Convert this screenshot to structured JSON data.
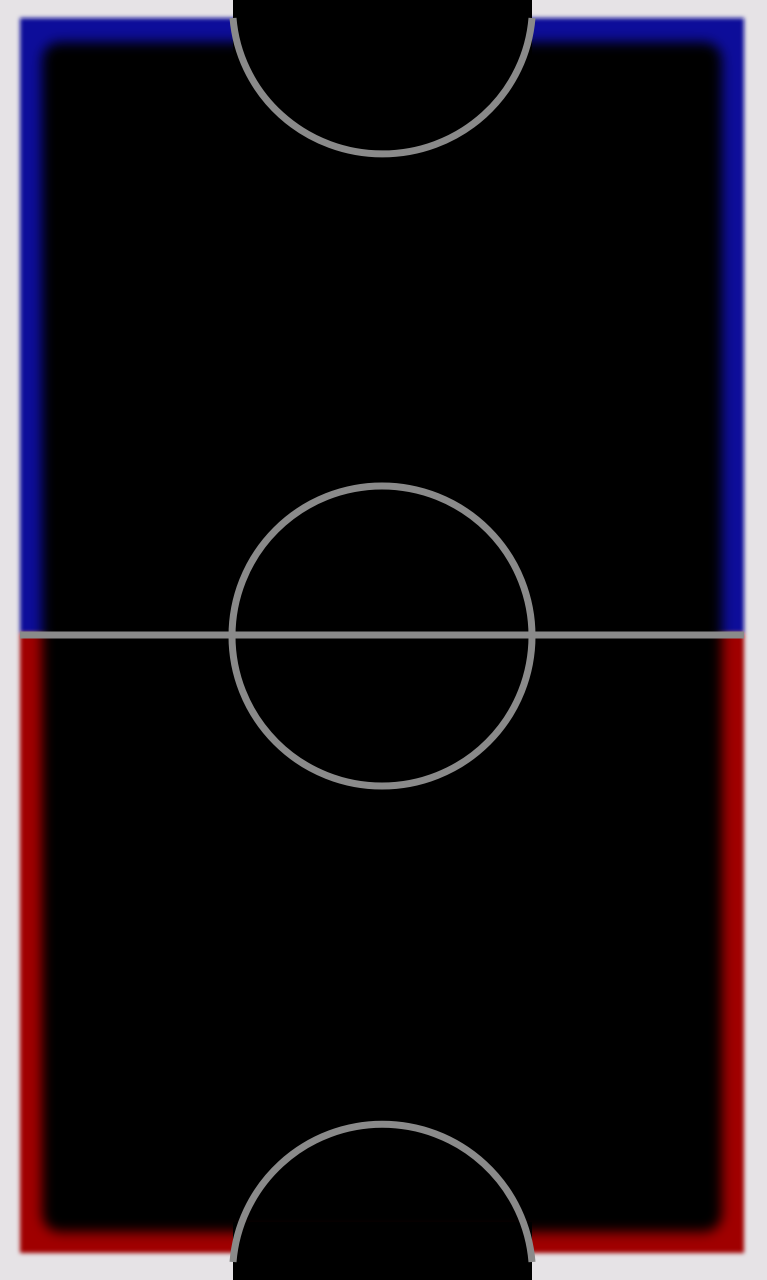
{
  "game": {
    "type": "air-hockey-table"
  },
  "colors": {
    "background": "#000000",
    "outer_border": "#e6e3e6",
    "top_half_rail": "#0a0a9a",
    "bottom_half_rail": "#a00000",
    "field_lines": "#8a8a8a",
    "goal_opening": "#000000"
  },
  "icons": {
    "center_circle": "center-circle-marking",
    "center_line": "halfway-line-marking",
    "top_goal_arc": "top-goal-crease",
    "bottom_goal_arc": "bottom-goal-crease"
  }
}
